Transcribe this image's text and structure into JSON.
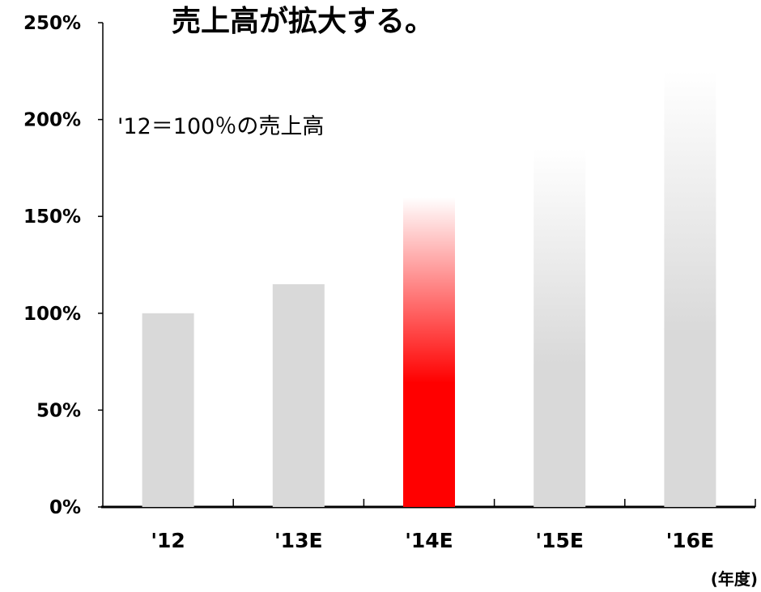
{
  "chart_data": {
    "type": "bar",
    "title": "売上高が拡大する。",
    "subtitle": "'12＝100％の売上高",
    "xlabel": "(年度)",
    "ylabel": "",
    "categories": [
      "'12",
      "'13E",
      "'14E",
      "'15E",
      "'16E"
    ],
    "values": [
      100,
      115,
      160,
      185,
      225
    ],
    "ylim": [
      0,
      250
    ],
    "yticks": [
      0,
      50,
      100,
      150,
      200,
      250
    ],
    "ytick_labels": [
      "0%",
      "50%",
      "100%",
      "150%",
      "200%",
      "250%"
    ],
    "bar_colors": [
      "#d9d9d9",
      "#d9d9d9",
      "#ff0000",
      "#d9d9d9",
      "#d9d9d9"
    ],
    "bar_fade": [
      false,
      false,
      true,
      true,
      true
    ],
    "grid": false,
    "legend": "none"
  }
}
